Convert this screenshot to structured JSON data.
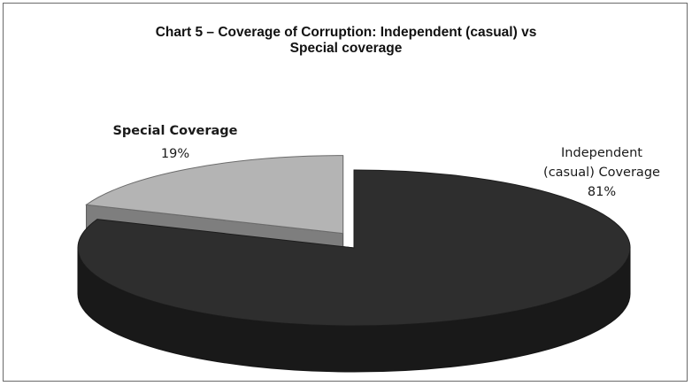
{
  "chart_data": {
    "type": "pie",
    "title_lines": [
      "Chart 5 – Coverage of Corruption: Independent (casual) vs",
      "Special coverage"
    ],
    "slices": [
      {
        "name": "Independent (casual) Coverage",
        "label_lines": [
          "Independent",
          "(casual) Coverage"
        ],
        "value": 81,
        "value_label": "81%",
        "color": "#2e2e2e",
        "exploded": false
      },
      {
        "name": "Special Coverage",
        "label_lines": [
          "Special Coverage"
        ],
        "value": 19,
        "value_label": "19%",
        "color": "#b4b4b4",
        "exploded": true
      }
    ],
    "style": "3d",
    "legend": "none"
  }
}
